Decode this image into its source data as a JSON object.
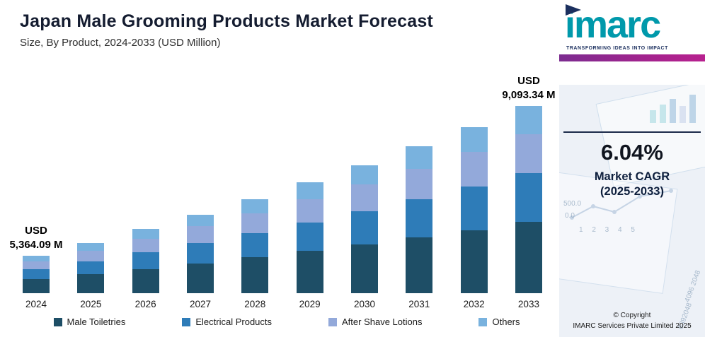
{
  "header": {
    "title": "Japan Male Grooming Products Market Forecast",
    "subtitle": "Size, By Product, 2024-2033 (USD Million)"
  },
  "chart_data": {
    "type": "bar",
    "subtype": "stacked-bar",
    "title": "Japan Male Grooming Products Market Forecast",
    "subtitle": "Size, By Product, 2024-2033 (USD Million)",
    "unit": "USD Million",
    "categories": [
      "2024",
      "2025",
      "2026",
      "2027",
      "2028",
      "2029",
      "2030",
      "2031",
      "2032",
      "2033"
    ],
    "series": [
      {
        "name": "Male Toiletries",
        "color": "#1e4e66",
        "values": [
          2038.4,
          2161.5,
          2292.0,
          2430.5,
          2577.3,
          2732.9,
          2898.0,
          3073.0,
          3258.6,
          3455.5
        ]
      },
      {
        "name": "Electrical Products",
        "color": "#2e7cb8",
        "values": [
          1394.7,
          1478.9,
          1568.2,
          1662.9,
          1763.4,
          1869.9,
          1982.8,
          2102.6,
          2229.6,
          2364.3
        ]
      },
      {
        "name": "After Shave Lotions",
        "color": "#93a9da",
        "values": [
          1126.5,
          1194.5,
          1266.6,
          1343.2,
          1424.3,
          1510.3,
          1601.5,
          1698.3,
          1800.8,
          1909.6
        ]
      },
      {
        "name": "Others",
        "color": "#79b2de",
        "values": [
          804.6,
          853.2,
          904.7,
          959.4,
          1017.3,
          1078.8,
          1143.9,
          1213.0,
          1286.3,
          1364.0
        ]
      }
    ],
    "totals": [
      5364.09,
      5688.08,
      6031.64,
      6395.95,
      6782.27,
      7191.92,
      7626.31,
      8086.94,
      8575.39,
      9093.34
    ],
    "annotations": [
      {
        "category": "2024",
        "index": 0,
        "line1": "USD",
        "line2": "5,364.09 M"
      },
      {
        "category": "2033",
        "index": 9,
        "line1": "USD",
        "line2": "9,093.34 M"
      }
    ],
    "legend_position": "bottom",
    "value_axis_visible": false,
    "display_baseline": 4440
  },
  "legend": {
    "items": [
      "Male Toiletries",
      "Electrical Products",
      "After Shave Lotions",
      "Others"
    ]
  },
  "panel": {
    "logo_text": "imarc",
    "tagline": "TRANSFORMING IDEAS INTO IMPACT",
    "cagr": {
      "value": "6.04%",
      "label": "Market CAGR",
      "range": "(2025-2033)"
    },
    "copyright": {
      "line1": "© Copyright",
      "line2": "IMARC Services Private Limited 2025"
    },
    "colors": {
      "logo_teal": "#0099ab",
      "logo_navy": "#1b2f5e",
      "tagline_bar": "#a3238e",
      "panel_bg": "#edf1f7",
      "divider": "#1c2b4a"
    },
    "decor_numbers": [
      "0.0",
      "500.0",
      "1 2 3 4 5",
      "4096 2048",
      "6392048"
    ]
  }
}
